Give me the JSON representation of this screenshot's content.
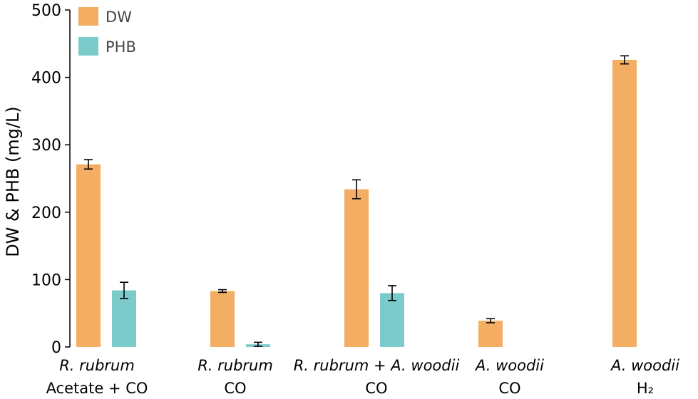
{
  "chart_data": {
    "type": "bar",
    "ylabel": "DW & PHB (mg/L)",
    "xlabel": "",
    "ylim": [
      0,
      500
    ],
    "yticks": [
      0,
      100,
      200,
      300,
      400,
      500
    ],
    "grid": false,
    "legend_position": "top-left",
    "categories": [
      {
        "line1": [
          {
            "text": "R. rubrum",
            "italic": true
          }
        ],
        "line2": "Acetate + CO"
      },
      {
        "line1": [
          {
            "text": "R. rubrum",
            "italic": true
          }
        ],
        "line2": "CO"
      },
      {
        "line1": [
          {
            "text": "R. rubrum",
            "italic": true
          },
          {
            "text": " + ",
            "italic": false
          },
          {
            "text": "A. woodii",
            "italic": true
          }
        ],
        "line2": "CO"
      },
      {
        "line1": [
          {
            "text": "A. woodii",
            "italic": true
          }
        ],
        "line2": "CO"
      },
      {
        "line1": [
          {
            "text": "A. woodii",
            "italic": true
          }
        ],
        "line2": "H₂"
      }
    ],
    "series": [
      {
        "name": "DW",
        "color": "#F4AE63",
        "values": [
          271,
          83,
          234,
          39,
          426
        ],
        "errors": [
          7,
          2,
          14,
          3,
          6
        ]
      },
      {
        "name": "PHB",
        "color": "#7CCBCB",
        "values": [
          84,
          4,
          80,
          null,
          null
        ],
        "errors": [
          12,
          3,
          11,
          null,
          null
        ]
      }
    ]
  }
}
